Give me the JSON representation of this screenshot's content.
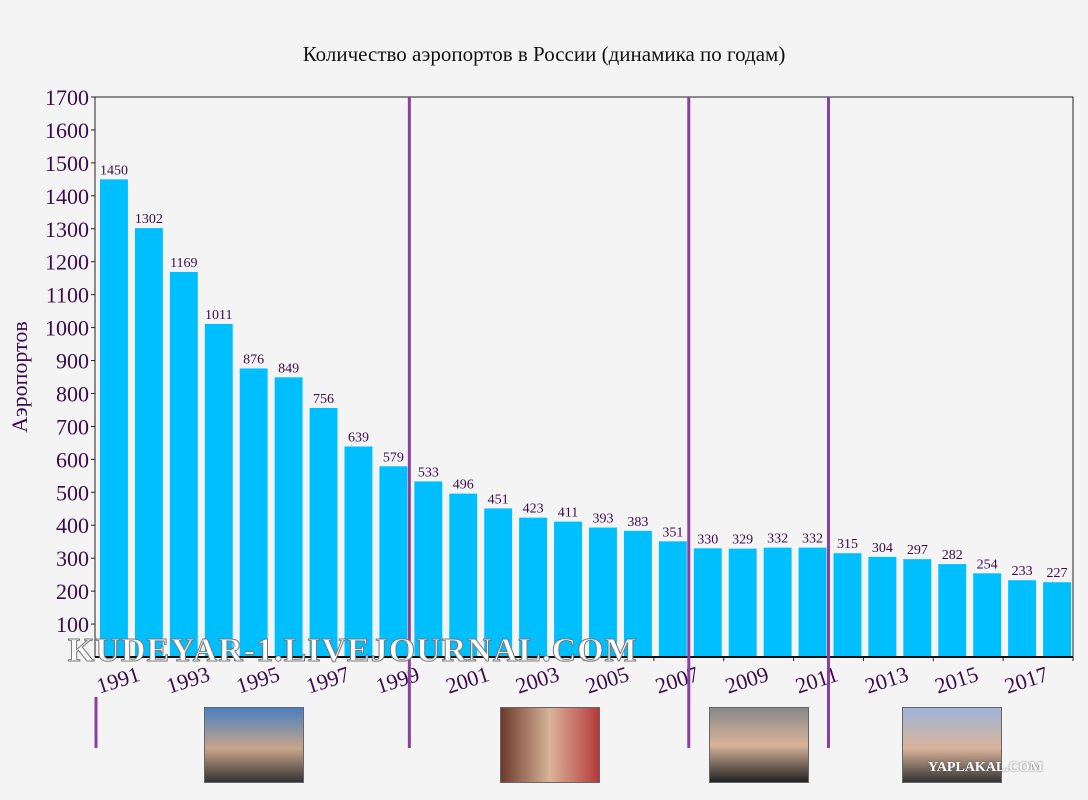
{
  "chart_data": {
    "type": "bar",
    "title": "Количество аэропортов в России (динамика по годам)",
    "xlabel": "",
    "ylabel": "Аэропортов",
    "ylim": [
      0,
      1700
    ],
    "yticks": [
      100,
      200,
      300,
      400,
      500,
      600,
      700,
      800,
      900,
      1000,
      1100,
      1200,
      1300,
      1400,
      1500,
      1600,
      1700
    ],
    "categories": [
      1991,
      1992,
      1993,
      1994,
      1995,
      1996,
      1997,
      1998,
      1999,
      2000,
      2001,
      2002,
      2003,
      2004,
      2005,
      2006,
      2007,
      2008,
      2009,
      2010,
      2011,
      2012,
      2013,
      2014,
      2015,
      2016,
      2017,
      2018
    ],
    "xtick_labels": [
      "1991",
      "1993",
      "1995",
      "1997",
      "1999",
      "2001",
      "2003",
      "2005",
      "2007",
      "2009",
      "2011",
      "2013",
      "2015",
      "2017"
    ],
    "values": [
      1450,
      1302,
      1169,
      1011,
      876,
      849,
      756,
      639,
      579,
      533,
      496,
      451,
      423,
      411,
      393,
      383,
      351,
      330,
      329,
      332,
      332,
      315,
      304,
      297,
      282,
      254,
      233,
      227
    ],
    "data_labels": true,
    "grid": false,
    "bar_color": "#00bfff",
    "label_color": "#3a0a4a",
    "divider_color": "#8b3fa0",
    "period_dividers_between": [
      [
        1999,
        2000
      ],
      [
        2007,
        2008
      ],
      [
        2011,
        2012
      ]
    ]
  },
  "watermarks": [
    "KUDEYAR-1.LIVEJOURNAL.COM",
    "YAPLAKAL.COM"
  ]
}
